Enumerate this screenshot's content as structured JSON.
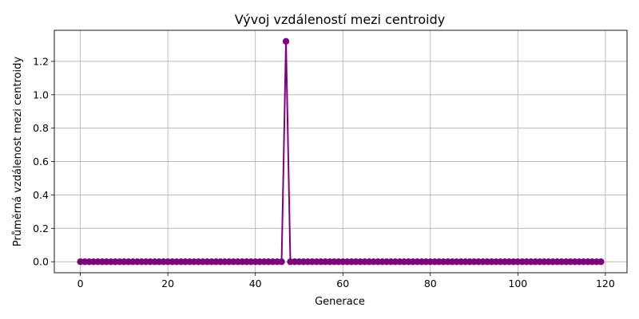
{
  "chart_data": {
    "type": "line",
    "title": "Vývoj vzdáleností mezi centroidy",
    "xlabel": "Generace",
    "ylabel": "Průměrná vzdálenost mezi centroidy",
    "xlim": [
      -5.95,
      124.95
    ],
    "ylim": [
      -0.066,
      1.386
    ],
    "xticks": [
      0,
      20,
      40,
      60,
      80,
      100,
      120
    ],
    "yticks": [
      0.0,
      0.2,
      0.4,
      0.6,
      0.8,
      1.0,
      1.2
    ],
    "xtick_labels": [
      "0",
      "20",
      "40",
      "60",
      "80",
      "100",
      "120"
    ],
    "ytick_labels": [
      "0.0",
      "0.2",
      "0.4",
      "0.6",
      "0.8",
      "1.0",
      "1.2"
    ],
    "grid": true,
    "marker": "circle",
    "color": "#800080",
    "series": [
      {
        "x": [
          0,
          1,
          2,
          3,
          4,
          5,
          6,
          7,
          8,
          9,
          10,
          11,
          12,
          13,
          14,
          15,
          16,
          17,
          18,
          19,
          20,
          21,
          22,
          23,
          24,
          25,
          26,
          27,
          28,
          29,
          30,
          31,
          32,
          33,
          34,
          35,
          36,
          37,
          38,
          39,
          40,
          41,
          42,
          43,
          44,
          45,
          46,
          47,
          48,
          49,
          50,
          51,
          52,
          53,
          54,
          55,
          56,
          57,
          58,
          59,
          60,
          61,
          62,
          63,
          64,
          65,
          66,
          67,
          68,
          69,
          70,
          71,
          72,
          73,
          74,
          75,
          76,
          77,
          78,
          79,
          80,
          81,
          82,
          83,
          84,
          85,
          86,
          87,
          88,
          89,
          90,
          91,
          92,
          93,
          94,
          95,
          96,
          97,
          98,
          99,
          100,
          101,
          102,
          103,
          104,
          105,
          106,
          107,
          108,
          109,
          110,
          111,
          112,
          113,
          114,
          115,
          116,
          117,
          118,
          119
        ],
        "y": [
          0,
          0,
          0,
          0,
          0,
          0,
          0,
          0,
          0,
          0,
          0,
          0,
          0,
          0,
          0,
          0,
          0,
          0,
          0,
          0,
          0,
          0,
          0,
          0,
          0,
          0,
          0,
          0,
          0,
          0,
          0,
          0,
          0,
          0,
          0,
          0,
          0,
          0,
          0,
          0,
          0,
          0,
          0,
          0,
          0,
          0,
          0,
          1.32,
          0,
          0,
          0,
          0,
          0,
          0,
          0,
          0,
          0,
          0,
          0,
          0,
          0,
          0,
          0,
          0,
          0,
          0,
          0,
          0,
          0,
          0,
          0,
          0,
          0,
          0,
          0,
          0,
          0,
          0,
          0,
          0,
          0,
          0,
          0,
          0,
          0,
          0,
          0,
          0,
          0,
          0,
          0,
          0,
          0,
          0,
          0,
          0,
          0,
          0,
          0,
          0,
          0,
          0,
          0,
          0,
          0,
          0,
          0,
          0,
          0,
          0,
          0,
          0,
          0,
          0,
          0,
          0,
          0,
          0,
          0,
          0
        ]
      }
    ]
  }
}
